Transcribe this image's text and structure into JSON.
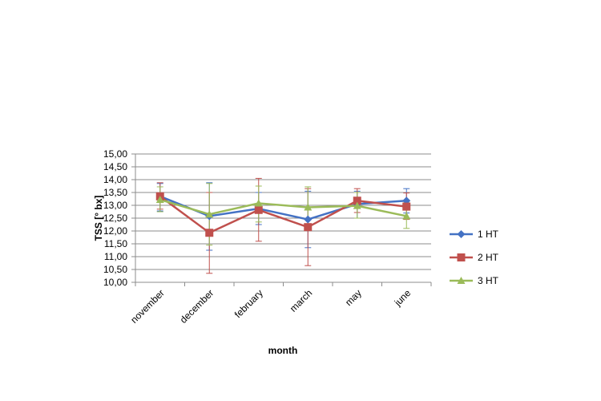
{
  "chart_data": {
    "type": "line",
    "title": "",
    "xlabel": "month",
    "ylabel": "TSS [° bx]",
    "categories": [
      "november",
      "december",
      "february",
      "march",
      "may",
      "june"
    ],
    "ylim": [
      10.0,
      15.0
    ],
    "yticks": [
      "15,00",
      "14,50",
      "14,00",
      "13,50",
      "13,00",
      "12,50",
      "12,00",
      "11,50",
      "11,00",
      "10,50",
      "10,00"
    ],
    "ytick_values": [
      15.0,
      14.5,
      14.0,
      13.5,
      13.0,
      12.5,
      12.0,
      11.5,
      11.0,
      10.5,
      10.0
    ],
    "grid": true,
    "legend_position": "right",
    "series": [
      {
        "name": "1 HT",
        "color": "#4472C4",
        "marker": "diamond",
        "values": [
          13.35,
          12.58,
          12.87,
          12.45,
          13.05,
          13.18
        ],
        "err_low": [
          12.78,
          11.25,
          12.25,
          11.35,
          12.5,
          12.7
        ],
        "err_high": [
          13.85,
          13.88,
          13.5,
          13.55,
          13.55,
          13.65
        ]
      },
      {
        "name": "2 HT",
        "color": "#C0504D",
        "marker": "square",
        "values": [
          13.35,
          11.93,
          12.82,
          12.15,
          13.18,
          12.95
        ],
        "err_low": [
          12.85,
          10.35,
          11.6,
          10.65,
          12.72,
          12.45
        ],
        "err_high": [
          13.88,
          13.5,
          14.05,
          13.65,
          13.65,
          13.48
        ]
      },
      {
        "name": "3 HT",
        "color": "#9BBB59",
        "marker": "triangle",
        "values": [
          13.22,
          12.65,
          13.08,
          12.92,
          12.98,
          12.58
        ],
        "err_low": [
          12.75,
          11.45,
          12.35,
          12.2,
          12.5,
          12.1
        ],
        "err_high": [
          13.72,
          13.85,
          13.75,
          13.72,
          13.5,
          13.1
        ]
      }
    ]
  }
}
